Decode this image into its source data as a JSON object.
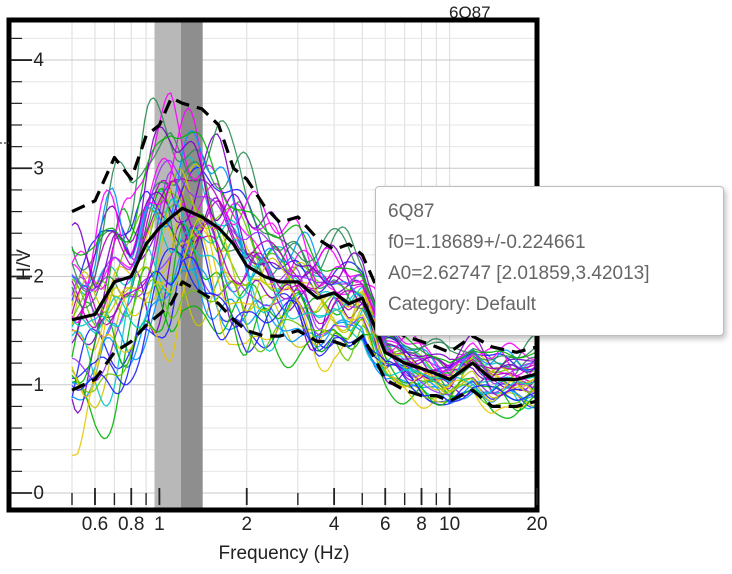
{
  "chart_data": {
    "type": "line",
    "title": "6Q87",
    "xlabel": "Frequency (Hz)",
    "ylabel": "H/V",
    "x_scale": "log",
    "xlim": [
      0.5,
      20
    ],
    "ylim": [
      0,
      4.4
    ],
    "grid": true,
    "x_ticks": [
      {
        "value": 0.6,
        "label": "0.6"
      },
      {
        "value": 0.8,
        "label": "0.8"
      },
      {
        "value": 1,
        "label": "1"
      },
      {
        "value": 2,
        "label": "2"
      },
      {
        "value": 4,
        "label": "4"
      },
      {
        "value": 6,
        "label": "6"
      },
      {
        "value": 8,
        "label": "8"
      },
      {
        "value": 10,
        "label": "10"
      },
      {
        "value": 20,
        "label": "20"
      }
    ],
    "y_ticks": [
      {
        "value": 0,
        "label": "0"
      },
      {
        "value": 1,
        "label": "1"
      },
      {
        "value": 2,
        "label": "2"
      },
      {
        "value": 3,
        "label": "3"
      },
      {
        "value": 4,
        "label": "4"
      }
    ],
    "f0_bands": [
      {
        "x0": 0.962,
        "x1": 1.187,
        "color": "#b8b8b8"
      },
      {
        "x0": 1.187,
        "x1": 1.41,
        "color": "#8e8e8e"
      }
    ],
    "series": [
      {
        "role": "mean",
        "style": "solid",
        "color": "#000000",
        "x": [
          0.5,
          0.6,
          0.7,
          0.8,
          0.9,
          1.0,
          1.1,
          1.2,
          1.4,
          1.6,
          1.8,
          2.0,
          2.3,
          2.6,
          3.0,
          3.5,
          4.0,
          4.5,
          5.0,
          5.5,
          6.0,
          7.0,
          8.0,
          9.0,
          10.0,
          12.0,
          14.0,
          17.0,
          20.0
        ],
        "y": [
          1.6,
          1.65,
          1.95,
          2.0,
          2.3,
          2.45,
          2.55,
          2.63,
          2.55,
          2.45,
          2.3,
          2.1,
          2.0,
          1.95,
          1.95,
          1.8,
          1.85,
          1.75,
          1.8,
          1.55,
          1.3,
          1.2,
          1.15,
          1.1,
          1.05,
          1.2,
          1.05,
          1.05,
          1.1
        ]
      },
      {
        "role": "mean+std",
        "style": "dashed",
        "color": "#000000",
        "x": [
          0.5,
          0.6,
          0.7,
          0.8,
          0.9,
          1.0,
          1.1,
          1.2,
          1.4,
          1.6,
          1.8,
          2.0,
          2.3,
          2.6,
          3.0,
          3.5,
          4.0,
          4.5,
          5.0,
          5.5,
          6.0,
          7.0,
          8.0,
          9.0,
          10.0,
          12.0,
          14.0,
          17.0,
          20.0
        ],
        "y": [
          2.6,
          2.7,
          3.1,
          2.9,
          3.3,
          3.4,
          3.65,
          3.6,
          3.55,
          3.4,
          3.0,
          2.9,
          2.65,
          2.5,
          2.55,
          2.35,
          2.25,
          2.3,
          2.2,
          1.95,
          1.55,
          1.45,
          1.4,
          1.35,
          1.3,
          1.45,
          1.35,
          1.3,
          1.35
        ]
      },
      {
        "role": "mean-std",
        "style": "dashed",
        "color": "#000000",
        "x": [
          0.5,
          0.6,
          0.7,
          0.8,
          0.9,
          1.0,
          1.1,
          1.2,
          1.4,
          1.6,
          1.8,
          2.0,
          2.3,
          2.6,
          3.0,
          3.5,
          4.0,
          4.5,
          5.0,
          5.5,
          6.0,
          7.0,
          8.0,
          9.0,
          10.0,
          12.0,
          14.0,
          17.0,
          20.0
        ],
        "y": [
          0.95,
          1.05,
          1.3,
          1.4,
          1.55,
          1.65,
          1.75,
          1.95,
          1.85,
          1.75,
          1.6,
          1.5,
          1.45,
          1.45,
          1.5,
          1.4,
          1.4,
          1.35,
          1.45,
          1.25,
          1.05,
          0.95,
          0.9,
          0.9,
          0.85,
          0.95,
          0.8,
          0.8,
          0.85
        ]
      }
    ],
    "individual_windows": {
      "count": 40,
      "palette": [
        "#7d00c8",
        "#1e1eff",
        "#00c8c8",
        "#00b400",
        "#c8c800",
        "#ff00ff",
        "#b400b4",
        "#0096ff",
        "#64c800",
        "#9b30ff",
        "#2e8b57",
        "#e6c800"
      ]
    },
    "tooltip": {
      "name": "6Q87",
      "f0": "f0=1.18689+/-0.224661",
      "a0": "A0=2.62747 [2.01859,3.42013]",
      "category": "Category: Default"
    }
  }
}
